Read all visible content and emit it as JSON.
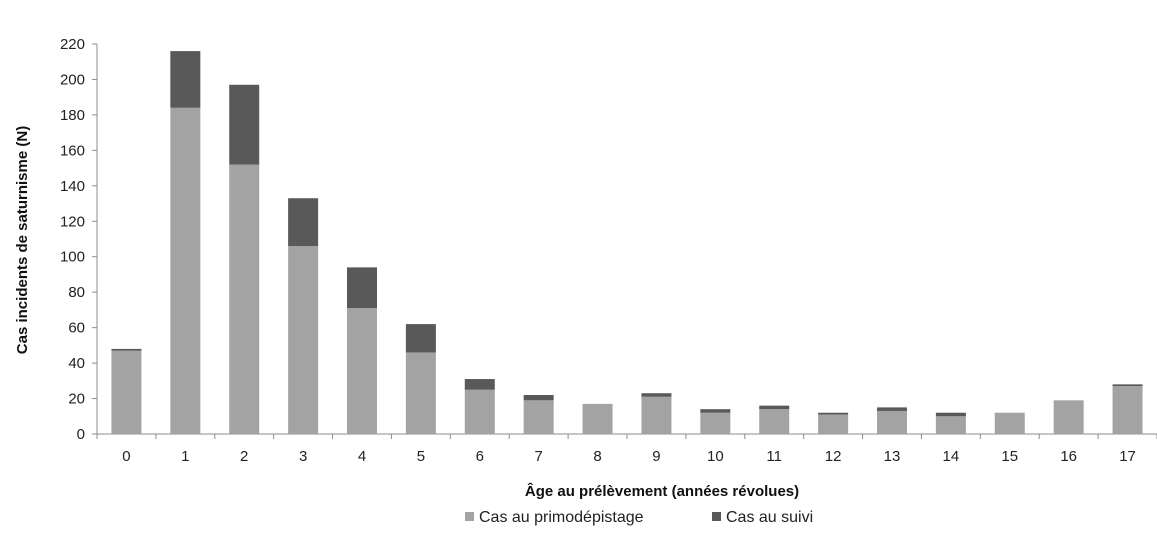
{
  "chart_data": {
    "type": "bar",
    "stacked": true,
    "title": "",
    "xlabel": "Âge au prélèvement (années révolues)",
    "ylabel": "Cas incidents de saturnisme (N)",
    "ylim": [
      0,
      220
    ],
    "yticks": [
      0,
      20,
      40,
      60,
      80,
      100,
      120,
      140,
      160,
      180,
      200,
      220
    ],
    "categories": [
      "0",
      "1",
      "2",
      "3",
      "4",
      "5",
      "6",
      "7",
      "8",
      "9",
      "10",
      "11",
      "12",
      "13",
      "14",
      "15",
      "16",
      "17"
    ],
    "series": [
      {
        "name": "Cas au primodépistage",
        "color": "#a3a3a3",
        "values": [
          47,
          184,
          152,
          106,
          71,
          46,
          25,
          19,
          17,
          21,
          12,
          14,
          11,
          13,
          10,
          12,
          19,
          27
        ]
      },
      {
        "name": "Cas au suivi",
        "color": "#595959",
        "values": [
          1,
          32,
          45,
          27,
          23,
          16,
          6,
          3,
          0,
          2,
          2,
          2,
          1,
          2,
          2,
          0,
          0,
          1
        ]
      }
    ],
    "grid": false,
    "legend_position": "bottom"
  }
}
